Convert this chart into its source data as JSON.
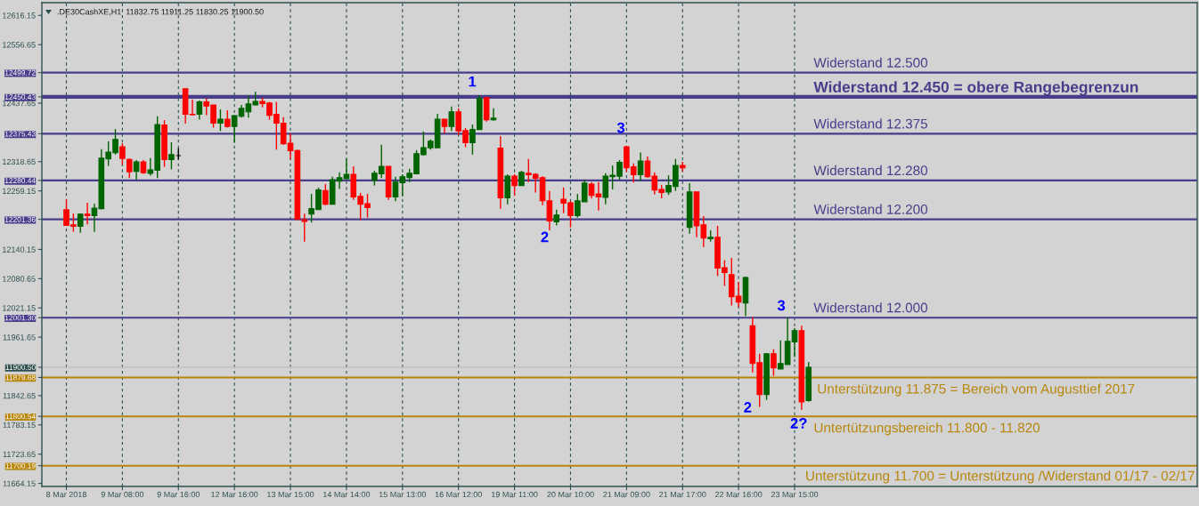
{
  "chart_data": {
    "type": "candlestick",
    "title": ".DE30CashXE,H1  11832.75 11911.25 11830.25 11900.50",
    "categories": [
      "8 Mar 2018",
      null,
      null,
      null,
      null,
      null,
      null,
      null,
      "9 Mar 08:00",
      null,
      null,
      null,
      null,
      null,
      null,
      null,
      "9 Mar 16:00",
      null,
      null,
      null,
      null,
      null,
      null,
      null,
      "12 Mar 16:00",
      null,
      null,
      null,
      null,
      null,
      null,
      null,
      "13 Mar 15:00",
      null,
      null,
      null,
      null,
      null,
      null,
      null,
      "14 Mar 14:00",
      null,
      null,
      null,
      null,
      null,
      null,
      null,
      "15 Mar 13:00",
      null,
      null,
      null,
      null,
      null,
      null,
      null,
      "16 Mar 12:00",
      null,
      null,
      null,
      null,
      null,
      null,
      null,
      "19 Mar 11:00",
      null,
      null,
      null,
      null,
      null,
      null,
      null,
      "20 Mar 10:00",
      null,
      null,
      null,
      null,
      null,
      null,
      null,
      "21 Mar 09:00",
      null,
      null,
      null,
      null,
      null,
      null,
      null,
      "21 Mar 17:00",
      null,
      null,
      null,
      null,
      null,
      null,
      null,
      "22 Mar 16:00",
      null,
      null,
      null,
      null,
      null,
      null,
      null,
      "23 Mar 15:00",
      null,
      null
    ],
    "ohlc": [
      [
        12221,
        12242,
        12188,
        12189
      ],
      [
        12190,
        12213,
        12176,
        12187
      ],
      [
        12187,
        12213,
        12174,
        12212
      ],
      [
        12212,
        12235,
        12191,
        12209
      ],
      [
        12209,
        12233,
        12176,
        12224
      ],
      [
        12223,
        12344,
        12222,
        12326
      ],
      [
        12324,
        12360,
        12310,
        12338
      ],
      [
        12337,
        12385,
        12333,
        12364
      ],
      [
        12349,
        12356,
        12312,
        12325
      ],
      [
        12323,
        12325,
        12285,
        12298
      ],
      [
        12299,
        12322,
        12282,
        12318
      ],
      [
        12318,
        12322,
        12294,
        12296
      ],
      [
        12295,
        12326,
        12290,
        12302
      ],
      [
        12301,
        12411,
        12285,
        12394
      ],
      [
        12393,
        12403,
        12308,
        12323
      ],
      [
        12323,
        12358,
        12303,
        12333
      ],
      [
        12331,
        12346,
        12323,
        12331
      ],
      [
        12467,
        12467,
        12396,
        12415
      ],
      [
        12415,
        12445,
        12413,
        12414
      ],
      [
        12415,
        12443,
        12404,
        12440
      ],
      [
        12440,
        12447,
        12413,
        12432
      ],
      [
        12434,
        12434,
        12388,
        12397
      ],
      [
        12397,
        12425,
        12381,
        12405
      ],
      [
        12405,
        12423,
        12388,
        12390
      ],
      [
        12390,
        12413,
        12357,
        12412
      ],
      [
        12411,
        12434,
        12408,
        12427
      ],
      [
        12420,
        12453,
        12408,
        12436
      ],
      [
        12434,
        12461,
        12433,
        12441
      ],
      [
        12441,
        12449,
        12429,
        12437
      ],
      [
        12438,
        12440,
        12404,
        12413
      ],
      [
        12415,
        12440,
        12343,
        12397
      ],
      [
        12397,
        12409,
        12353,
        12355
      ],
      [
        12356,
        12376,
        12324,
        12341
      ],
      [
        12341,
        12343,
        12201,
        12201
      ],
      [
        12200,
        12213,
        12156,
        12197
      ],
      [
        12212,
        12253,
        12195,
        12223
      ],
      [
        12221,
        12266,
        12221,
        12261
      ],
      [
        12260,
        12273,
        12230,
        12232
      ],
      [
        12232,
        12288,
        12232,
        12282
      ],
      [
        12279,
        12297,
        12263,
        12286
      ],
      [
        12284,
        12324,
        12283,
        12293
      ],
      [
        12293,
        12309,
        12241,
        12247
      ],
      [
        12248,
        12255,
        12200,
        12232
      ],
      [
        12233,
        12253,
        12205,
        12225
      ],
      [
        12281,
        12300,
        12270,
        12295
      ],
      [
        12294,
        12353,
        12285,
        12309
      ],
      [
        12309,
        12309,
        12241,
        12247
      ],
      [
        12247,
        12288,
        12238,
        12277
      ],
      [
        12276,
        12293,
        12248,
        12288
      ],
      [
        12286,
        12304,
        12277,
        12295
      ],
      [
        12294,
        12342,
        12294,
        12335
      ],
      [
        12333,
        12380,
        12331,
        12347
      ],
      [
        12347,
        12364,
        12343,
        12360
      ],
      [
        12347,
        12416,
        12347,
        12405
      ],
      [
        12405,
        12405,
        12376,
        12390
      ],
      [
        12390,
        12431,
        12381,
        12420
      ],
      [
        12420,
        12427,
        12373,
        12381
      ],
      [
        12382,
        12387,
        12348,
        12357
      ],
      [
        12357,
        12394,
        12333,
        12384
      ],
      [
        12384,
        12454,
        12384,
        12447
      ],
      [
        12449,
        12450,
        12400,
        12404
      ],
      [
        12404,
        12427,
        12402,
        12407
      ],
      [
        12346,
        12370,
        12223,
        12245
      ],
      [
        12245,
        12293,
        12232,
        12289
      ],
      [
        12289,
        12293,
        12250,
        12270
      ],
      [
        12270,
        12300,
        12270,
        12297
      ],
      [
        12295,
        12324,
        12277,
        12292
      ],
      [
        12293,
        12295,
        12256,
        12285
      ],
      [
        12286,
        12289,
        12230,
        12239
      ],
      [
        12239,
        12259,
        12179,
        12198
      ],
      [
        12196,
        12221,
        12189,
        12210
      ],
      [
        12242,
        12266,
        12214,
        12234
      ],
      [
        12235,
        12239,
        12185,
        12209
      ],
      [
        12209,
        12253,
        12205,
        12239
      ],
      [
        12237,
        12282,
        12237,
        12275
      ],
      [
        12273,
        12277,
        12244,
        12250
      ],
      [
        12253,
        12277,
        12219,
        12247
      ],
      [
        12246,
        12295,
        12232,
        12289
      ],
      [
        12288,
        12311,
        12262,
        12291
      ],
      [
        12289,
        12322,
        12282,
        12317
      ],
      [
        12349,
        12350,
        12298,
        12306
      ],
      [
        12308,
        12315,
        12276,
        12292
      ],
      [
        12292,
        12337,
        12279,
        12320
      ],
      [
        12320,
        12329,
        12286,
        12288
      ],
      [
        12289,
        12297,
        12252,
        12261
      ],
      [
        12262,
        12271,
        12244,
        12256
      ],
      [
        12257,
        12291,
        12251,
        12270
      ],
      [
        12268,
        12324,
        12259,
        12311
      ],
      [
        12311,
        12318,
        12299,
        12306
      ],
      [
        12185,
        12275,
        12172,
        12257
      ],
      [
        12257,
        12257,
        12165,
        12188
      ],
      [
        12190,
        12208,
        12145,
        12163
      ],
      [
        12162,
        12179,
        12156,
        12165
      ],
      [
        12165,
        12188,
        12086,
        12102
      ],
      [
        12103,
        12118,
        12066,
        12093
      ],
      [
        12089,
        12123,
        12026,
        12044
      ],
      [
        12045,
        12074,
        12023,
        12033
      ],
      [
        12031,
        12085,
        12005,
        12083
      ],
      [
        11985,
        12002,
        11890,
        11908
      ],
      [
        11910,
        11928,
        11820,
        11845
      ],
      [
        11845,
        11928,
        11834,
        11928
      ],
      [
        11928,
        11937,
        11883,
        11899
      ],
      [
        11897,
        11955,
        11897,
        11908
      ],
      [
        11906,
        12001,
        11906,
        11953
      ],
      [
        11952,
        11980,
        11921,
        11975
      ],
      [
        11975,
        11985,
        11814,
        11830
      ],
      [
        11832.75,
        11911.25,
        11830.25,
        11900.5
      ]
    ],
    "colors": [
      "#ff0000",
      "#ff0000",
      "#006400",
      "#ff0000",
      "#006400",
      "#006400",
      "#006400",
      "#006400",
      "#ff0000",
      "#ff0000",
      "#006400",
      "#ff0000",
      "#006400",
      "#006400",
      "#ff0000",
      "#006400",
      "#000000",
      "#ff0000",
      "#ff0000",
      "#006400",
      "#ff0000",
      "#ff0000",
      "#006400",
      "#ff0000",
      "#006400",
      "#006400",
      "#006400",
      "#006400",
      "#ff0000",
      "#ff0000",
      "#ff0000",
      "#ff0000",
      "#ff0000",
      "#ff0000",
      "#ff0000",
      "#006400",
      "#006400",
      "#ff0000",
      "#006400",
      "#006400",
      "#006400",
      "#ff0000",
      "#ff0000",
      "#ff0000",
      "#006400",
      "#006400",
      "#ff0000",
      "#006400",
      "#006400",
      "#006400",
      "#006400",
      "#006400",
      "#006400",
      "#006400",
      "#ff0000",
      "#006400",
      "#ff0000",
      "#ff0000",
      "#006400",
      "#006400",
      "#ff0000",
      "#006400",
      "#ff0000",
      "#006400",
      "#ff0000",
      "#006400",
      "#ff0000",
      "#ff0000",
      "#ff0000",
      "#ff0000",
      "#006400",
      "#ff0000",
      "#ff0000",
      "#006400",
      "#006400",
      "#ff0000",
      "#ff0000",
      "#006400",
      "#006400",
      "#006400",
      "#ff0000",
      "#ff0000",
      "#006400",
      "#ff0000",
      "#ff0000",
      "#ff0000",
      "#006400",
      "#006400",
      "#ff0000",
      "#006400",
      "#ff0000",
      "#ff0000",
      "#006400",
      "#ff0000",
      "#ff0000",
      "#ff0000",
      "#ff0000",
      "#006400",
      "#ff0000",
      "#ff0000",
      "#006400",
      "#ff0000",
      "#006400",
      "#006400",
      "#006400",
      "#ff0000",
      "#006400"
    ],
    "ylim": [
      11658,
      12642
    ],
    "yticks": [
      11664.15,
      11700.19,
      11723.65,
      11783.15,
      11800.54,
      11842.65,
      11879.68,
      {
        "value": 11900.5,
        "label": "11900.50"
      },
      11961.65,
      {
        "value": 12001.3,
        "label": "12001.30"
      },
      12021.15,
      12080.65,
      12140.15,
      12201.36,
      12259.15,
      12280.44,
      12318.65,
      12375.43,
      12437.65,
      12450.43,
      12499.72,
      12556.65,
      12616.15
    ],
    "grid": "x",
    "ref_lines": [
      {
        "axis": "y",
        "value": 12499.72,
        "label": "Widerstand 12.500",
        "color": "#483d8b"
      },
      {
        "axis": "y",
        "value": 12450.43,
        "label": "Widerstand 12.450 = obere Rangebegrenzun",
        "color": "#483d8b"
      },
      {
        "axis": "y",
        "value": 12375.43,
        "label": "Widerstand 12.375",
        "color": "#483d8b"
      },
      {
        "axis": "y",
        "value": 12280.44,
        "label": "Widerstand 12.280",
        "color": "#483d8b"
      },
      {
        "axis": "y",
        "value": 12201.36,
        "label": "Widerstand 12.200",
        "color": "#483d8b"
      },
      {
        "axis": "y",
        "value": 12001.3,
        "label": "Widerstand 12.000",
        "color": "#483d8b"
      },
      {
        "axis": "y",
        "value": 11900.5,
        "color": "#c0c0c0"
      },
      {
        "axis": "y",
        "value": 11879.68,
        "label": "Unterstützung 11.875 = Bereich vom Augusttief 2017",
        "color": "#b8860b"
      },
      {
        "axis": "y",
        "value": 11800.54,
        "label": "Untertützungsbereich 11.800 - 11.820",
        "color": "#b8860b"
      },
      {
        "axis": "y",
        "value": 11700.19,
        "label": "Unterstützung 11.700 = Unterstützung /Widerstand 01/17 - 02/17",
        "color": "#b8860b"
      }
    ],
    "annotations": [
      {
        "text": "1",
        "y": 12454
      },
      "2",
      {
        "text": "3",
        "y": 12350
      },
      "2",
      {
        "text": "3",
        "y": 12001
      },
      {
        "text": "2?",
        "y": 11814
      }
    ]
  }
}
